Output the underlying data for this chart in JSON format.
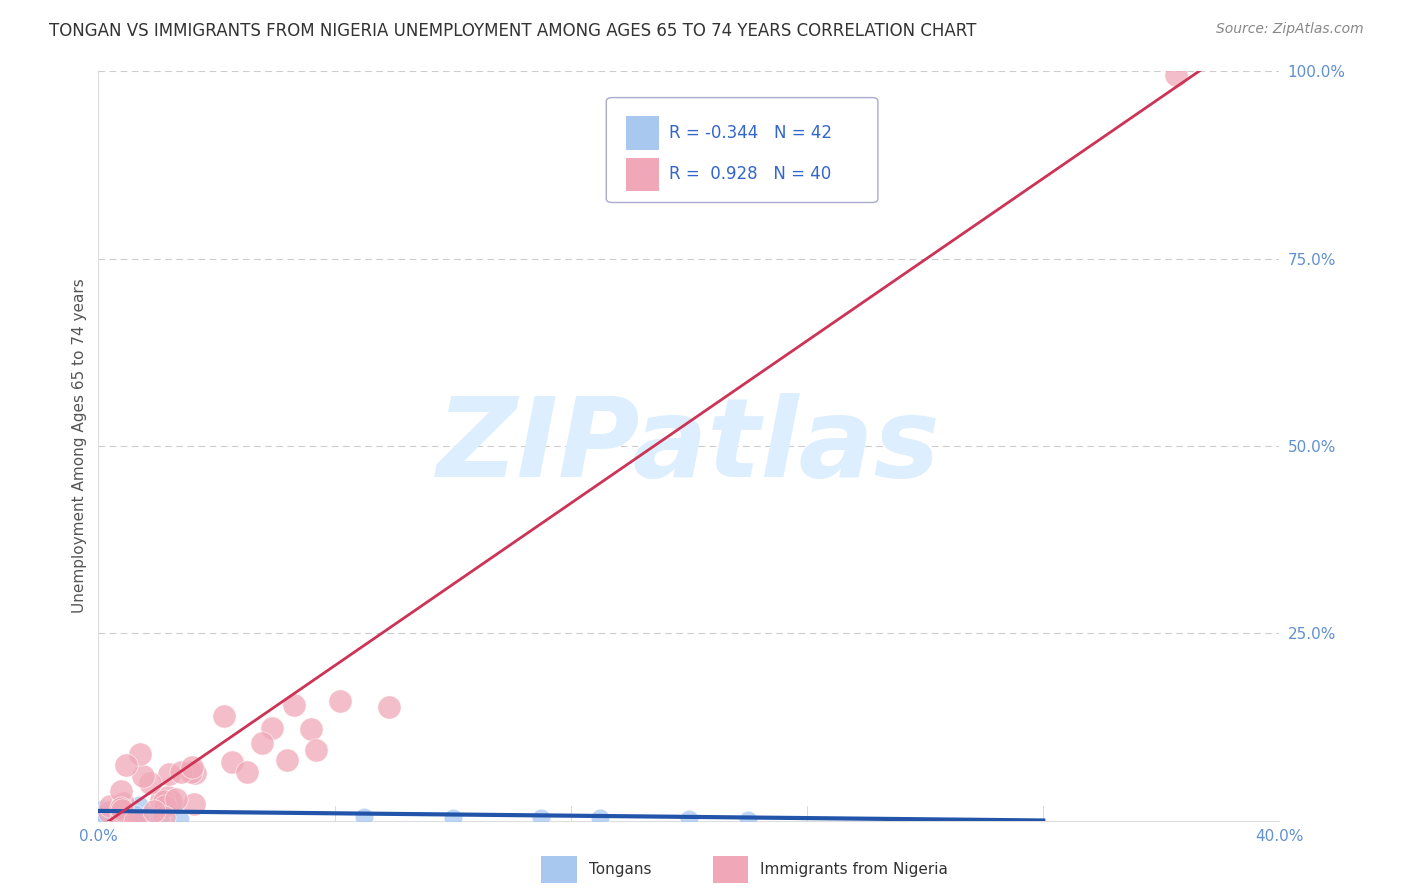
{
  "title": "TONGAN VS IMMIGRANTS FROM NIGERIA UNEMPLOYMENT AMONG AGES 65 TO 74 YEARS CORRELATION CHART",
  "source": "Source: ZipAtlas.com",
  "ylabel": "Unemployment Among Ages 65 to 74 years",
  "xlim": [
    0.0,
    0.4
  ],
  "ylim": [
    0.0,
    1.0
  ],
  "blue_R": -0.344,
  "blue_N": 42,
  "pink_R": 0.928,
  "pink_N": 40,
  "blue_color": "#a8c8f0",
  "pink_color": "#f0a8b8",
  "blue_line_color": "#2255aa",
  "pink_line_color": "#cc3355",
  "watermark_text": "ZIPatlas",
  "watermark_color": "#ddeeff",
  "background_color": "#ffffff",
  "grid_color": "#cccccc",
  "tick_label_color": "#6090d0",
  "title_color": "#333333",
  "source_color": "#888888",
  "legend_text_color": "#3366cc"
}
